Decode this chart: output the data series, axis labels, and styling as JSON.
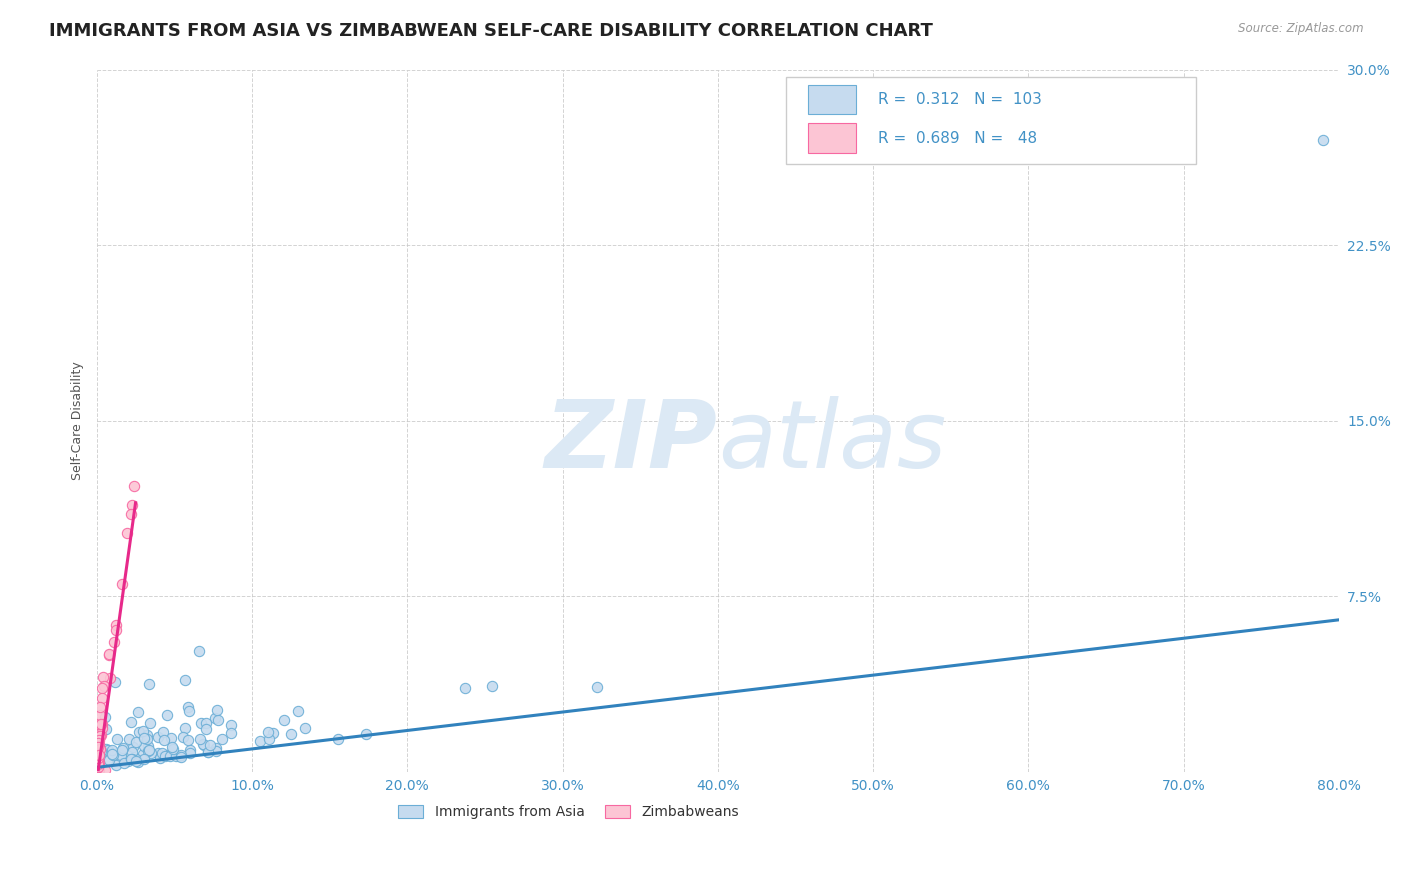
{
  "title": "IMMIGRANTS FROM ASIA VS ZIMBABWEAN SELF-CARE DISABILITY CORRELATION CHART",
  "source": "Source: ZipAtlas.com",
  "ylabel": "Self-Care Disability",
  "xlim": [
    0,
    0.8
  ],
  "ylim": [
    0,
    0.3
  ],
  "xtick_vals": [
    0.0,
    0.1,
    0.2,
    0.3,
    0.4,
    0.5,
    0.6,
    0.7,
    0.8
  ],
  "xticklabels": [
    "0.0%",
    "10.0%",
    "20.0%",
    "30.0%",
    "40.0%",
    "50.0%",
    "60.0%",
    "70.0%",
    "80.0%"
  ],
  "ytick_vals": [
    0.0,
    0.075,
    0.15,
    0.225,
    0.3
  ],
  "yticklabels": [
    "",
    "7.5%",
    "15.0%",
    "22.5%",
    "30.0%"
  ],
  "r1": 0.312,
  "n1": 103,
  "r2": 0.689,
  "n2": 48,
  "blue_marker_face": "#c6dbef",
  "blue_marker_edge": "#6baed6",
  "pink_marker_face": "#fcc5d4",
  "pink_marker_edge": "#f768a1",
  "line_blue": "#3182bd",
  "line_pink": "#e7298a",
  "tick_color": "#4292c6",
  "watermark_color": "#dce9f5",
  "title_fontsize": 13,
  "axis_label_fontsize": 9,
  "tick_fontsize": 10,
  "legend_fontsize": 11,
  "blue_line_start_x": 0.0,
  "blue_line_end_x": 0.8,
  "blue_line_start_y": 0.002,
  "blue_line_end_y": 0.065,
  "pink_line_start_x": 0.001,
  "pink_line_end_x": 0.025,
  "pink_line_start_y": 0.001,
  "pink_line_end_y": 0.115
}
